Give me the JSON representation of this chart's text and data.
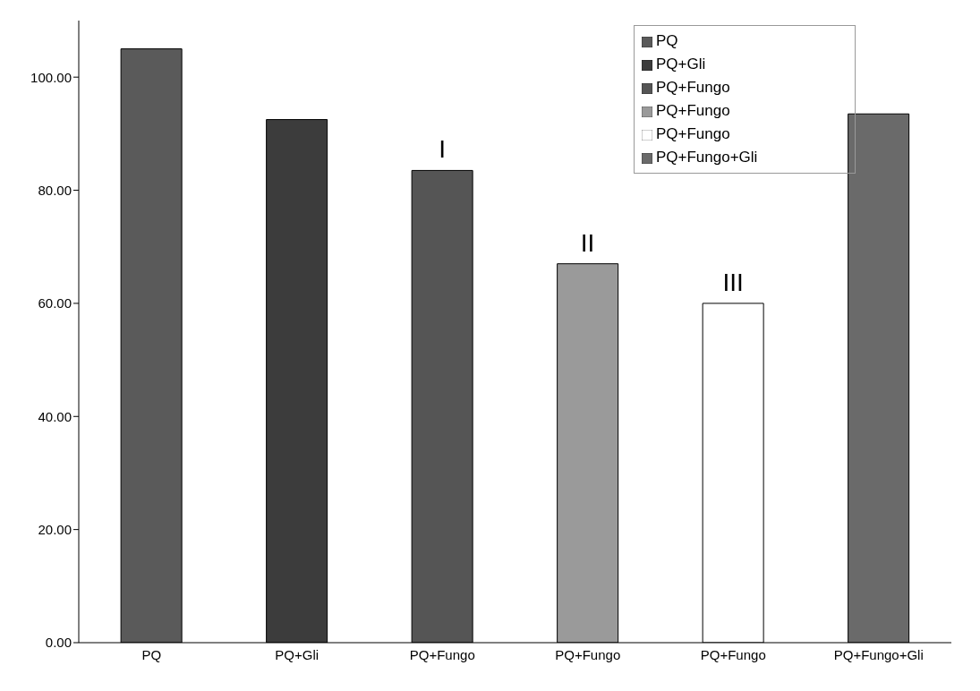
{
  "chart_data": {
    "type": "bar",
    "stacked": true,
    "categories": [
      "PQ",
      "PQ+Gli",
      "PQ+Fungo",
      "PQ+Fungo",
      "PQ+Fungo",
      "PQ+Fungo+Gli"
    ],
    "series": [
      {
        "name": "PQ",
        "color": "#5a5a5a",
        "values": [
          105,
          null,
          null,
          null,
          null,
          null
        ]
      },
      {
        "name": "PQ+Gli",
        "color": "#3c3c3c",
        "values": [
          null,
          92.5,
          null,
          null,
          null,
          null
        ]
      },
      {
        "name": "PQ+Fungo",
        "color": "#555555",
        "values": [
          null,
          null,
          83.5,
          null,
          null,
          null
        ],
        "value_labels": [
          null,
          null,
          "I",
          null,
          null,
          null
        ]
      },
      {
        "name": "PQ+Fungo",
        "color": "#9a9a9a",
        "values": [
          null,
          null,
          null,
          67,
          null,
          null
        ],
        "value_labels": [
          null,
          null,
          null,
          "II",
          null,
          null
        ]
      },
      {
        "name": "PQ+Fungo",
        "color": "#ffffff",
        "values": [
          null,
          null,
          null,
          null,
          60,
          null
        ],
        "value_labels": [
          null,
          null,
          null,
          null,
          "III",
          null
        ]
      },
      {
        "name": "PQ+Fungo+Gli",
        "color": "#6a6a6a",
        "values": [
          null,
          null,
          null,
          null,
          null,
          93.5
        ]
      }
    ],
    "ylim": [
      0,
      110
    ],
    "yticks": [
      {
        "value": 0,
        "label": "0.00"
      },
      {
        "value": 20,
        "label": "20.00"
      },
      {
        "value": 40,
        "label": "40.00"
      },
      {
        "value": 60,
        "label": "60.00"
      },
      {
        "value": 80,
        "label": "80.00"
      },
      {
        "value": 100,
        "label": "100.00"
      }
    ],
    "grid": false,
    "legend": "top right"
  }
}
